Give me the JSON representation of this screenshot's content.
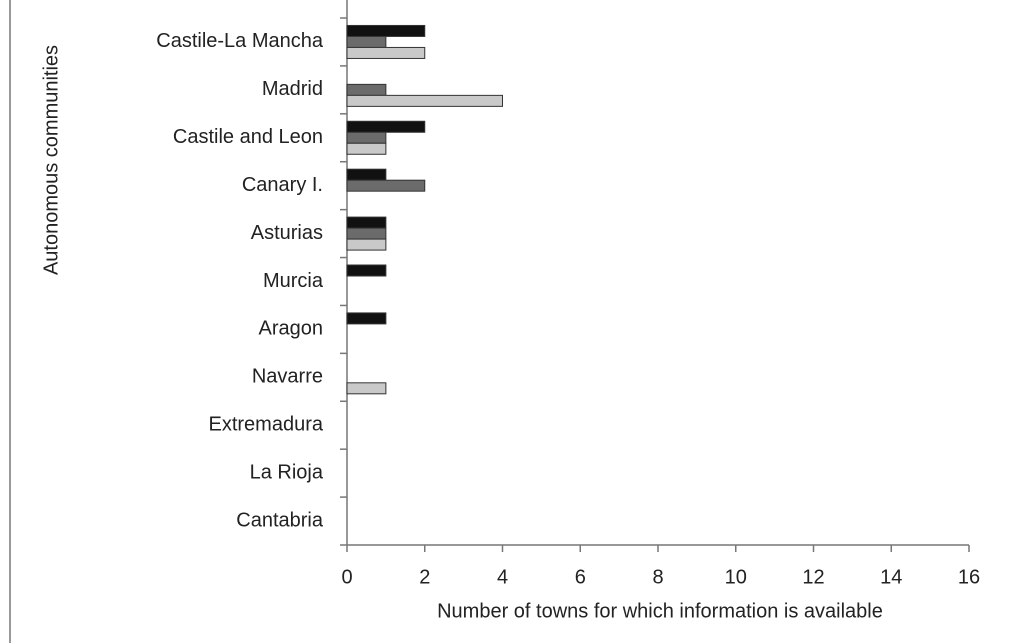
{
  "chart_data": {
    "type": "bar",
    "orientation": "horizontal",
    "x_label": "Number of towns for which information  is available",
    "y_label": "Autonomous communities",
    "categories": [
      "Castile-La Mancha",
      "Madrid",
      "Castile and Leon",
      "Canary I.",
      "Asturias",
      "Murcia",
      "Aragon",
      "Navarre",
      "Extremadura",
      "La Rioja",
      "Cantabria"
    ],
    "series": [
      {
        "color": "#111111",
        "values": [
          2,
          0,
          2,
          1,
          1,
          1,
          1,
          0,
          0,
          0,
          0
        ]
      },
      {
        "color": "#6b6b6b",
        "values": [
          1,
          1,
          1,
          2,
          1,
          0,
          0,
          0,
          0,
          0,
          0
        ]
      },
      {
        "color": "#c9c9c9",
        "values": [
          2,
          4,
          1,
          0,
          1,
          0,
          0,
          1,
          0,
          0,
          0
        ]
      }
    ],
    "xlim": [
      0,
      16
    ],
    "xticks": [
      0,
      2,
      4,
      6,
      8,
      10,
      12,
      14,
      16
    ],
    "grid": false
  }
}
